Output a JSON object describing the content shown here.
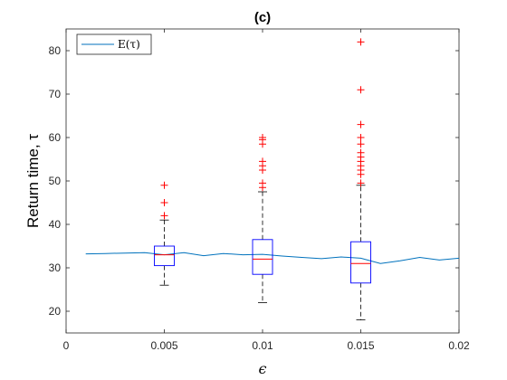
{
  "chart_data": {
    "type": "box",
    "title": "(c)",
    "xlabel": "ϵ",
    "ylabel": "Return time, τ",
    "xlim": [
      0,
      0.02
    ],
    "ylim": [
      15,
      85
    ],
    "xticks": [
      0,
      0.005,
      0.01,
      0.015,
      0.02
    ],
    "xtick_labels": [
      "0",
      "0.005",
      "0.01",
      "0.015",
      "0.02"
    ],
    "yticks": [
      20,
      30,
      40,
      50,
      60,
      70,
      80
    ],
    "ytick_labels": [
      "20",
      "30",
      "40",
      "50",
      "60",
      "70",
      "80"
    ],
    "grid": false,
    "legend": {
      "position": "top-left",
      "entries": [
        "E(τ)"
      ]
    },
    "boxes": [
      {
        "x": 0.005,
        "whisker_low": 26,
        "q1": 30.5,
        "median": 33,
        "q3": 35,
        "whisker_high": 41,
        "outliers": [
          42,
          45,
          49
        ]
      },
      {
        "x": 0.01,
        "whisker_low": 22,
        "q1": 28.5,
        "median": 32,
        "q3": 36.5,
        "whisker_high": 47.5,
        "outliers": [
          48.5,
          49.5,
          52.5,
          53.5,
          54.5,
          58.5,
          59.5,
          60
        ]
      },
      {
        "x": 0.015,
        "whisker_low": 18,
        "q1": 26.5,
        "median": 31,
        "q3": 36,
        "whisker_high": 49,
        "outliers": [
          49.5,
          51.5,
          52.5,
          53.5,
          54.5,
          55.5,
          56.5,
          58.5,
          60,
          63,
          71,
          82
        ]
      }
    ],
    "series": [
      {
        "name": "E(τ)",
        "color": "#0072bd",
        "x": [
          0.001,
          0.002,
          0.003,
          0.004,
          0.005,
          0.006,
          0.007,
          0.008,
          0.009,
          0.01,
          0.011,
          0.012,
          0.013,
          0.014,
          0.015,
          0.016,
          0.017,
          0.018,
          0.019,
          0.02
        ],
        "y": [
          33.2,
          33.3,
          33.4,
          33.5,
          33.0,
          33.5,
          32.8,
          33.3,
          33.0,
          33.1,
          32.7,
          32.4,
          32.1,
          32.5,
          32.2,
          31.0,
          31.6,
          32.4,
          31.8,
          32.2
        ]
      }
    ],
    "colors": {
      "box": "#0000ff",
      "median": "#ff0000",
      "outlier": "#ff0000",
      "whisker": "#000000"
    }
  }
}
